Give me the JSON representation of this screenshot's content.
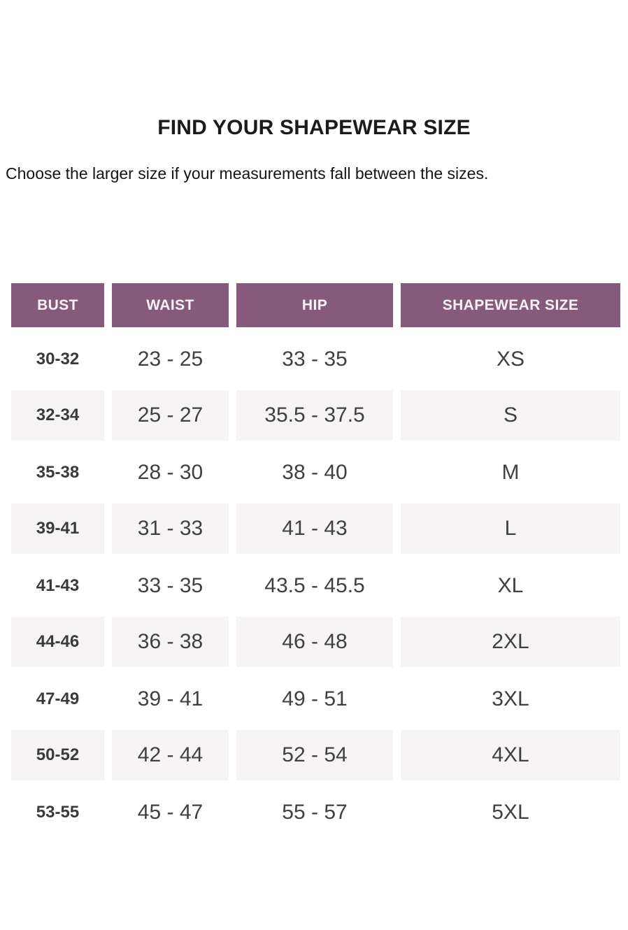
{
  "page": {
    "title": "FIND YOUR SHAPEWEAR SIZE",
    "subtitle": "Choose the larger size if your measurements fall between the sizes."
  },
  "colors": {
    "header_bg": "#855a7b",
    "header_text": "#f9f3f7",
    "row_alt_bg": "#f7f4f5",
    "body_text": "#404040"
  },
  "table": {
    "columns": [
      "BUST",
      "WAIST",
      "HIP",
      "SHAPEWEAR SIZE"
    ],
    "rows": [
      {
        "bust": "30-32",
        "waist": "23 - 25",
        "hip": "33 - 35",
        "size": "XS"
      },
      {
        "bust": "32-34",
        "waist": "25 - 27",
        "hip": "35.5 - 37.5",
        "size": "S"
      },
      {
        "bust": "35-38",
        "waist": "28 - 30",
        "hip": "38 - 40",
        "size": "M"
      },
      {
        "bust": "39-41",
        "waist": "31 - 33",
        "hip": "41 - 43",
        "size": "L"
      },
      {
        "bust": "41-43",
        "waist": "33 - 35",
        "hip": "43.5 - 45.5",
        "size": "XL"
      },
      {
        "bust": "44-46",
        "waist": "36 - 38",
        "hip": "46 - 48",
        "size": "2XL"
      },
      {
        "bust": "47-49",
        "waist": "39 - 41",
        "hip": "49 - 51",
        "size": "3XL"
      },
      {
        "bust": "50-52",
        "waist": "42 - 44",
        "hip": "52 - 54",
        "size": "4XL"
      },
      {
        "bust": "53-55",
        "waist": "45 - 47",
        "hip": "55 - 57",
        "size": "5XL"
      }
    ]
  }
}
